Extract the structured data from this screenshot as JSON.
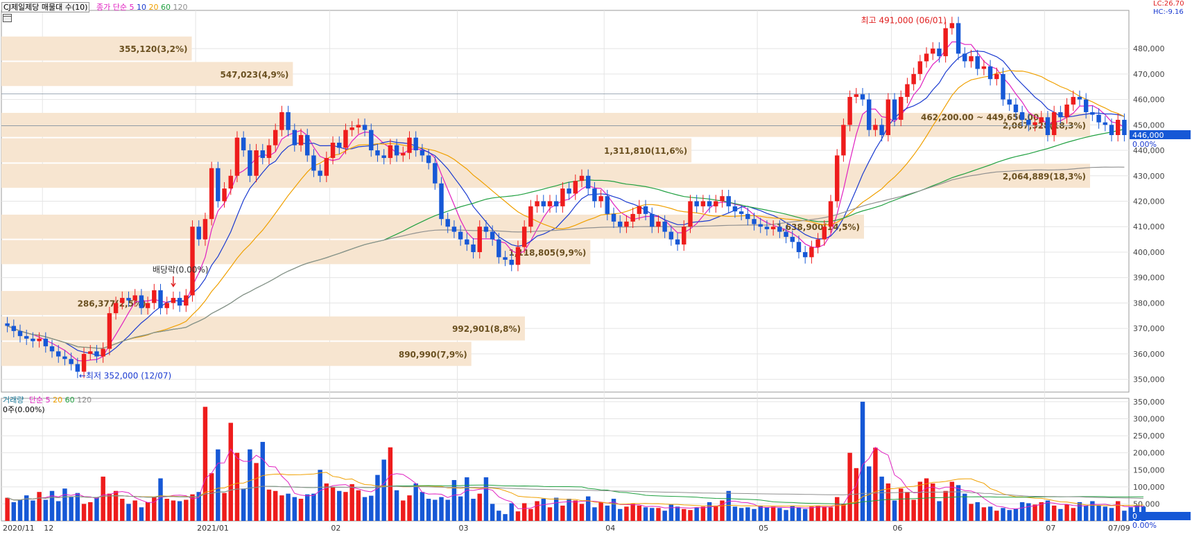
{
  "header": {
    "title": "CJ제일제당 매물대 수(10)",
    "legend_prefix": "종가 단순",
    "ma_labels": [
      "5",
      "10",
      "20",
      "60",
      "120"
    ]
  },
  "volume_header": {
    "title": "거래량",
    "prefix": "단순",
    "ma_labels": [
      "5",
      "20",
      "60",
      "120"
    ],
    "info": "0주(0.00%)"
  },
  "right_info": {
    "lc": "LC:26.70",
    "hc": "HC:-9.16"
  },
  "current": {
    "price_label": "446,000",
    "pct_label": "0.00%",
    "value": 446000
  },
  "volume_current": {
    "label": "0",
    "pct_label": "0.00%"
  },
  "colors": {
    "up": "#ee1c1c",
    "down": "#1658d6",
    "ma5": "#e020c0",
    "ma10": "#1a3ad0",
    "ma20": "#f0a000",
    "ma60": "#20a040",
    "ma120": "#909090",
    "profile": "#f7e5d0"
  },
  "annotations": {
    "high": "최고 491,000 (06/01)",
    "low": "←최저 352,000 (12/07)",
    "dividend": "배당락(0.00%)"
  },
  "chart_data": [
    {
      "type": "candlestick",
      "title": "CJ제일제당 매물대 수(10)",
      "ylim": [
        345000,
        495000
      ],
      "y_ticks": [
        "350,000",
        "360,000",
        "370,000",
        "380,000",
        "390,000",
        "400,000",
        "410,000",
        "420,000",
        "430,000",
        "440,000",
        "450,000",
        "460,000",
        "470,000",
        "480,000"
      ],
      "x_labels": [
        "2020/11",
        "12",
        "2021/01",
        "02",
        "03",
        "04",
        "05",
        "06",
        "07",
        "07/09"
      ],
      "x_label_index": [
        0,
        6,
        30,
        51,
        71,
        94,
        118,
        139,
        163,
        172
      ],
      "high": {
        "value": 491000,
        "date": "06/01"
      },
      "low": {
        "value": 352000,
        "date": "12/07"
      },
      "volume_profile": [
        {
          "label": "890,990(7,9%)",
          "low": 355000,
          "high": 365000,
          "share": 7.9
        },
        {
          "label": "992,901(8,8%)",
          "low": 365000,
          "high": 375000,
          "share": 8.8
        },
        {
          "label": "286,377(2,5%)",
          "low": 375000,
          "high": 385000,
          "share": 2.5
        },
        {
          "label": "1,118,805(9,9%)",
          "low": 395000,
          "high": 405000,
          "share": 9.9
        },
        {
          "label": "1,638,900(14,5%)",
          "low": 405000,
          "high": 415000,
          "share": 14.5
        },
        {
          "label": "2,064,889(18,3%)",
          "low": 425000,
          "high": 435000,
          "share": 18.3
        },
        {
          "label": "1,311,810(11,6%)",
          "low": 435000,
          "high": 445000,
          "share": 11.6
        },
        {
          "label": "2,067,528(18,3%)",
          "low": 445000,
          "high": 455000,
          "share": 18.3
        },
        {
          "label": "547,023(4,9%)",
          "low": 465000,
          "high": 475000,
          "share": 4.9
        },
        {
          "label": "355,120(3,2%)",
          "low": 475000,
          "high": 485000,
          "share": 3.2
        }
      ],
      "profile_highlight": "462,200.00 ~ 449,650.00",
      "close": [
        371000,
        369000,
        367000,
        366000,
        365000,
        366000,
        363000,
        361000,
        359000,
        358000,
        356000,
        353000,
        360000,
        361000,
        359000,
        362000,
        376000,
        380000,
        382000,
        381000,
        383000,
        378000,
        380000,
        385000,
        378000,
        380000,
        382000,
        379000,
        383000,
        410000,
        405000,
        413000,
        433000,
        420000,
        425000,
        430000,
        445000,
        440000,
        430000,
        440000,
        437000,
        442000,
        448000,
        455000,
        448000,
        442000,
        446000,
        438000,
        432000,
        430000,
        437000,
        443000,
        441000,
        448000,
        449000,
        450000,
        448000,
        440000,
        438000,
        437000,
        442000,
        438000,
        439000,
        445000,
        440000,
        438000,
        435000,
        427000,
        413000,
        410000,
        408000,
        405000,
        403000,
        400000,
        410000,
        408000,
        405000,
        398000,
        397000,
        395000,
        402000,
        410000,
        418000,
        420000,
        418000,
        420000,
        418000,
        425000,
        423000,
        428000,
        430000,
        425000,
        420000,
        422000,
        415000,
        412000,
        410000,
        412000,
        415000,
        418000,
        415000,
        410000,
        412000,
        408000,
        405000,
        403000,
        410000,
        420000,
        418000,
        420000,
        418000,
        420000,
        422000,
        418000,
        416000,
        415000,
        413000,
        411000,
        410000,
        409000,
        410000,
        408000,
        406000,
        404000,
        400000,
        398000,
        402000,
        405000,
        410000,
        420000,
        438000,
        450000,
        461000,
        462000,
        460000,
        448000,
        450000,
        446000,
        460000,
        452000,
        461000,
        466000,
        470000,
        475000,
        478000,
        480000,
        477000,
        488000,
        490000,
        478000,
        475000,
        477000,
        472000,
        473000,
        468000,
        470000,
        460000,
        458000,
        455000,
        452000,
        450000,
        451000,
        453000,
        446000,
        455000,
        453000,
        458000,
        461000,
        460000,
        455000,
        454000,
        451000,
        450000,
        446000,
        452000,
        446000
      ]
    },
    {
      "type": "bar",
      "title": "거래량",
      "ylim": [
        0,
        360000
      ],
      "y_ticks": [
        "50,000",
        "100,000",
        "150,000",
        "200,000",
        "250,000",
        "300,000",
        "350,000"
      ],
      "values": [
        68000,
        55000,
        62000,
        75000,
        60000,
        85000,
        62000,
        88000,
        58000,
        95000,
        72000,
        82000,
        50000,
        55000,
        68000,
        130000,
        80000,
        88000,
        65000,
        50000,
        60000,
        40000,
        55000,
        70000,
        125000,
        65000,
        60000,
        58000,
        62000,
        78000,
        85000,
        335000,
        140000,
        210000,
        82000,
        288000,
        200000,
        95000,
        210000,
        170000,
        232000,
        92000,
        88000,
        75000,
        80000,
        70000,
        65000,
        78000,
        80000,
        150000,
        110000,
        100000,
        88000,
        85000,
        108000,
        90000,
        70000,
        74000,
        135000,
        180000,
        216000,
        90000,
        60000,
        75000,
        110000,
        85000,
        65000,
        62000,
        70000,
        62000,
        120000,
        72000,
        128000,
        65000,
        80000,
        128000,
        50000,
        30000,
        20000,
        52000,
        28000,
        52000,
        35000,
        58000,
        65000,
        40000,
        68000,
        45000,
        65000,
        60000,
        50000,
        72000,
        40000,
        55000,
        45000,
        65000,
        35000,
        42000,
        50000,
        45000,
        40000,
        38000,
        38000,
        30000,
        48000,
        42000,
        35000,
        32000,
        40000,
        42000,
        55000,
        45000,
        60000,
        88000,
        42000,
        38000,
        40000,
        35000,
        45000,
        40000,
        42000,
        38000,
        32000,
        44000,
        40000,
        35000,
        42000,
        45000,
        42000,
        40000,
        70000,
        50000,
        200000,
        155000,
        350000,
        160000,
        215000,
        130000,
        110000,
        60000,
        95000,
        85000,
        62000,
        115000,
        125000,
        110000,
        58000,
        88000,
        115000,
        105000,
        80000,
        50000,
        55000,
        40000,
        42000,
        30000,
        38000,
        32000,
        35000,
        55000,
        52000,
        48000,
        55000,
        60000,
        45000,
        35000,
        48000,
        38000,
        55000,
        45000,
        58000,
        45000,
        42000,
        38000,
        58000,
        30000,
        40000,
        45000,
        42000
      ]
    }
  ]
}
